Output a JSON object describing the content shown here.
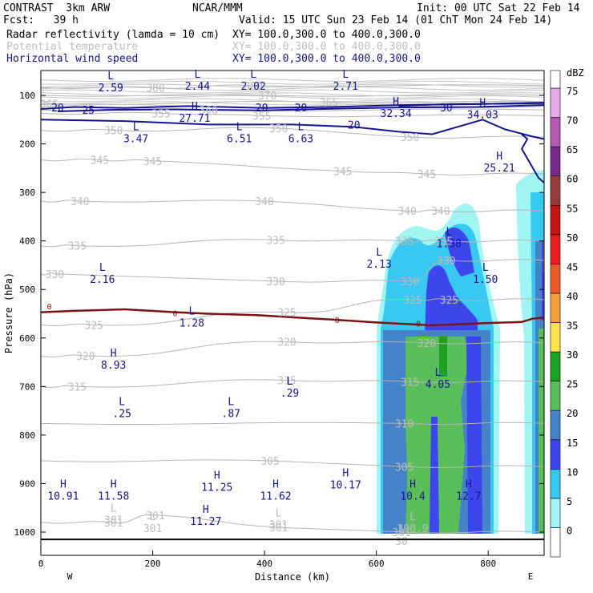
{
  "header": {
    "model": "CONTRAST  3km ARW",
    "org": "NCAR/MMM",
    "init": "Init: 00 UTC Sat 22 Feb 14",
    "fcst": "Fcst:   39 h",
    "valid": "Valid: 15 UTC Sun 23 Feb 14 (01 ChT Mon 24 Feb 14)",
    "fields": [
      {
        "name": "Radar reflectivity (lamda = 10 cm)",
        "xy": "XY= 100.0,300.0 to 400.0,300.0",
        "style": "normal"
      },
      {
        "name": "Potential temperature",
        "xy": "XY= 100.0,300.0 to 400.0,300.0",
        "style": "dim"
      },
      {
        "name": "Horizontal wind speed",
        "xy": "XY= 100.0,300.0 to 400.0,300.0",
        "style": "blue"
      }
    ]
  },
  "chart_data": {
    "type": "cross-section",
    "xlabel": "Distance (km)",
    "ylabel": "Pressure (hPa)",
    "xlim": [
      0,
      900
    ],
    "ylim": [
      1060,
      50
    ],
    "x_ticks": [
      0,
      200,
      400,
      600,
      800
    ],
    "y_ticks": [
      100,
      200,
      300,
      400,
      500,
      600,
      700,
      800,
      900,
      1000
    ],
    "left_end": "W",
    "right_end": "E",
    "colorbar": {
      "units": "dBZ",
      "levels": [
        0,
        5,
        10,
        15,
        20,
        25,
        30,
        35,
        40,
        45,
        50,
        55,
        60,
        65,
        70,
        75
      ],
      "colors": [
        "#ffffff",
        "#a0f5f5",
        "#38c8f0",
        "#3c46ec",
        "#4682c8",
        "#5abe5a",
        "#1ea01e",
        "#ffe14b",
        "#f5a040",
        "#f05a28",
        "#e61e1e",
        "#c31414",
        "#963c3c",
        "#78288c",
        "#b45ab4",
        "#e6aae6"
      ]
    },
    "theta_contours": [
      {
        "value": 380,
        "labels": [
          {
            "x": 205,
            "p": 84,
            "text": "380"
          },
          {
            "x": 380,
            "p": 80,
            "text": "380"
          }
        ]
      },
      {
        "value": 370,
        "labels": [
          {
            "x": 405,
            "p": 100,
            "text": "370"
          }
        ]
      },
      {
        "value": 365,
        "labels": [
          {
            "x": 15,
            "p": 117,
            "text": "365"
          },
          {
            "x": 515,
            "p": 114,
            "text": "365"
          }
        ]
      },
      {
        "value": 360,
        "labels": [
          {
            "x": 300,
            "p": 130,
            "text": "360"
          }
        ]
      },
      {
        "value": 355,
        "labels": [
          {
            "x": 215,
            "p": 137,
            "text": "355"
          },
          {
            "x": 395,
            "p": 142,
            "text": "355"
          }
        ]
      },
      {
        "value": 350,
        "labels": [
          {
            "x": 130,
            "p": 172,
            "text": "350"
          },
          {
            "x": 425,
            "p": 168,
            "text": "350"
          },
          {
            "x": 660,
            "p": 186,
            "text": "350"
          }
        ]
      },
      {
        "value": 345,
        "labels": [
          {
            "x": 105,
            "p": 233,
            "text": "345"
          },
          {
            "x": 200,
            "p": 235,
            "text": "345"
          },
          {
            "x": 540,
            "p": 256,
            "text": "345"
          },
          {
            "x": 690,
            "p": 262,
            "text": "345"
          }
        ]
      },
      {
        "value": 340,
        "labels": [
          {
            "x": 70,
            "p": 318,
            "text": "340"
          },
          {
            "x": 400,
            "p": 318,
            "text": "340"
          },
          {
            "x": 655,
            "p": 338,
            "text": "340"
          },
          {
            "x": 715,
            "p": 338,
            "text": "340"
          }
        ]
      },
      {
        "value": 335,
        "labels": [
          {
            "x": 65,
            "p": 410,
            "text": "335"
          },
          {
            "x": 420,
            "p": 398,
            "text": "335"
          },
          {
            "x": 650,
            "p": 400,
            "text": "335"
          },
          {
            "x": 720,
            "p": 400,
            "text": "335"
          }
        ]
      },
      {
        "value": 330,
        "labels": [
          {
            "x": 25,
            "p": 468,
            "text": "330"
          },
          {
            "x": 420,
            "p": 483,
            "text": "330"
          },
          {
            "x": 660,
            "p": 483,
            "text": "330"
          },
          {
            "x": 725,
            "p": 440,
            "text": "330"
          }
        ]
      },
      {
        "value": 325,
        "labels": [
          {
            "x": 95,
            "p": 573,
            "text": "325"
          },
          {
            "x": 440,
            "p": 547,
            "text": "325"
          },
          {
            "x": 665,
            "p": 521,
            "text": "325"
          },
          {
            "x": 730,
            "p": 521,
            "text": "325"
          }
        ]
      },
      {
        "value": 320,
        "labels": [
          {
            "x": 80,
            "p": 637,
            "text": "320"
          },
          {
            "x": 440,
            "p": 608,
            "text": "320"
          },
          {
            "x": 690,
            "p": 610,
            "text": "320"
          }
        ]
      },
      {
        "value": 315,
        "labels": [
          {
            "x": 65,
            "p": 700,
            "text": "315"
          },
          {
            "x": 440,
            "p": 687,
            "text": "315"
          },
          {
            "x": 660,
            "p": 690,
            "text": "315"
          }
        ]
      },
      {
        "value": 310,
        "labels": [
          {
            "x": 650,
            "p": 776,
            "text": "310"
          }
        ]
      },
      {
        "value": 305,
        "labels": [
          {
            "x": 410,
            "p": 853,
            "text": "305"
          },
          {
            "x": 650,
            "p": 865,
            "text": "305"
          }
        ]
      },
      {
        "value": 301,
        "labels": [
          {
            "x": 130,
            "p": 980,
            "text": "301"
          },
          {
            "x": 205,
            "p": 965,
            "text": "301"
          },
          {
            "x": 425,
            "p": 990,
            "text": "301"
          },
          {
            "x": 645,
            "p": 1000,
            "text": "301"
          }
        ]
      }
    ],
    "theta_extrema": [
      {
        "type": "L",
        "x": 200,
        "p": 975,
        "text": "301",
        "label_pos": "right"
      },
      {
        "type": "L",
        "x": 130,
        "p": 958,
        "text": "301",
        "label_pos": "below"
      },
      {
        "type": "L",
        "x": 425,
        "p": 968,
        "text": "301",
        "label_pos": "below"
      },
      {
        "type": "L",
        "x": 665,
        "p": 975,
        "text": "300.9",
        "label_pos": "below"
      },
      {
        "type": "L",
        "x": 645,
        "p": 1002,
        "text": "30",
        "label_pos": "below"
      }
    ],
    "wind_contours": [
      {
        "value": 20,
        "labels": [
          {
            "x": 30,
            "p": 125,
            "text": "20"
          },
          {
            "x": 395,
            "p": 125,
            "text": "20"
          },
          {
            "x": 465,
            "p": 125,
            "text": "20"
          },
          {
            "x": 560,
            "p": 160,
            "text": "20"
          }
        ]
      },
      {
        "value": 25,
        "labels": [
          {
            "x": 85,
            "p": 130,
            "text": "25"
          }
        ]
      },
      {
        "value": 30,
        "labels": [
          {
            "x": 725,
            "p": 125,
            "text": "30"
          }
        ]
      }
    ],
    "wind_extrema": [
      {
        "type": "L",
        "x": 125,
        "p": 67,
        "text": "2.59"
      },
      {
        "type": "L",
        "x": 280,
        "p": 64,
        "text": "2.44"
      },
      {
        "type": "L",
        "x": 380,
        "p": 64,
        "text": "2.02"
      },
      {
        "type": "L",
        "x": 545,
        "p": 64,
        "text": "2.71"
      },
      {
        "type": "H",
        "x": 275,
        "p": 130,
        "text": "27.71"
      },
      {
        "type": "H",
        "x": 635,
        "p": 120,
        "text": "32.34"
      },
      {
        "type": "H",
        "x": 790,
        "p": 122,
        "text": "34.03"
      },
      {
        "type": "L",
        "x": 170,
        "p": 172,
        "text": "3.47"
      },
      {
        "type": "L",
        "x": 355,
        "p": 172,
        "text": "6.51"
      },
      {
        "type": "L",
        "x": 465,
        "p": 172,
        "text": "6.63"
      },
      {
        "type": "H",
        "x": 820,
        "p": 232,
        "text": "25.21"
      },
      {
        "type": "L",
        "x": 730,
        "p": 388,
        "text": "1.38"
      },
      {
        "type": "L",
        "x": 605,
        "p": 430,
        "text": "2.13"
      },
      {
        "type": "L",
        "x": 110,
        "p": 462,
        "text": "2.16"
      },
      {
        "type": "L",
        "x": 795,
        "p": 462,
        "text": "1.50"
      },
      {
        "type": "L",
        "x": 270,
        "p": 552,
        "text": "1.28"
      },
      {
        "type": "H",
        "x": 130,
        "p": 638,
        "text": "8.93"
      },
      {
        "type": "L",
        "x": 710,
        "p": 678,
        "text": "4.05"
      },
      {
        "type": "L",
        "x": 445,
        "p": 696,
        "text": ".29"
      },
      {
        "type": "L",
        "x": 145,
        "p": 738,
        "text": ".25"
      },
      {
        "type": "L",
        "x": 340,
        "p": 738,
        "text": ".87"
      },
      {
        "type": "H",
        "x": 40,
        "p": 908,
        "text": "10.91"
      },
      {
        "type": "H",
        "x": 130,
        "p": 908,
        "text": "11.58"
      },
      {
        "type": "H",
        "x": 315,
        "p": 890,
        "text": "11.25"
      },
      {
        "type": "H",
        "x": 420,
        "p": 908,
        "text": "11.62"
      },
      {
        "type": "H",
        "x": 545,
        "p": 885,
        "text": "10.17"
      },
      {
        "type": "H",
        "x": 665,
        "p": 908,
        "text": "10.4"
      },
      {
        "type": "H",
        "x": 765,
        "p": 908,
        "text": "12.7"
      },
      {
        "type": "H",
        "x": 295,
        "p": 960,
        "text": "11.27"
      }
    ],
    "freezing_level": {
      "label": "0",
      "points": [
        [
          0,
          547
        ],
        [
          60,
          544
        ],
        [
          150,
          541
        ],
        [
          240,
          547
        ],
        [
          300,
          550
        ],
        [
          390,
          553
        ],
        [
          460,
          558
        ],
        [
          520,
          562
        ],
        [
          600,
          568
        ],
        [
          700,
          574
        ],
        [
          780,
          570
        ],
        [
          860,
          567
        ],
        [
          880,
          560
        ],
        [
          900,
          558
        ]
      ],
      "labels": [
        {
          "x": 15,
          "p": 534,
          "text": "0"
        },
        {
          "x": 240,
          "p": 548,
          "text": "0"
        },
        {
          "x": 530,
          "p": 562,
          "text": "0"
        },
        {
          "x": 675,
          "p": 570,
          "text": "0"
        }
      ]
    },
    "terrain_p": 1015
  }
}
